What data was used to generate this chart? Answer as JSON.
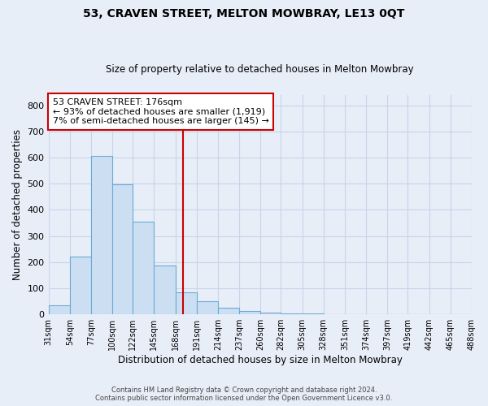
{
  "title": "53, CRAVEN STREET, MELTON MOWBRAY, LE13 0QT",
  "subtitle": "Size of property relative to detached houses in Melton Mowbray",
  "xlabel": "Distribution of detached houses by size in Melton Mowbray",
  "ylabel": "Number of detached properties",
  "bar_values": [
    35,
    220,
    605,
    498,
    355,
    188,
    85,
    50,
    25,
    13,
    8,
    5,
    3,
    0,
    0,
    0,
    0,
    0,
    0,
    0
  ],
  "bin_edges": [
    31,
    54,
    77,
    100,
    122,
    145,
    168,
    191,
    214,
    237,
    260,
    282,
    305,
    328,
    351,
    374,
    397,
    419,
    442,
    465,
    488
  ],
  "tick_labels": [
    "31sqm",
    "54sqm",
    "77sqm",
    "100sqm",
    "122sqm",
    "145sqm",
    "168sqm",
    "191sqm",
    "214sqm",
    "237sqm",
    "260sqm",
    "282sqm",
    "305sqm",
    "328sqm",
    "351sqm",
    "374sqm",
    "397sqm",
    "419sqm",
    "442sqm",
    "465sqm",
    "488sqm"
  ],
  "bar_color": "#ccdff2",
  "bar_edge_color": "#6aaad4",
  "vline_x": 176,
  "vline_color": "#cc0000",
  "ylim": [
    0,
    840
  ],
  "yticks": [
    0,
    100,
    200,
    300,
    400,
    500,
    600,
    700,
    800
  ],
  "annotation_title": "53 CRAVEN STREET: 176sqm",
  "annotation_line1": "← 93% of detached houses are smaller (1,919)",
  "annotation_line2": "7% of semi-detached houses are larger (145) →",
  "annotation_box_color": "#ffffff",
  "annotation_box_edge": "#cc0000",
  "footer1": "Contains HM Land Registry data © Crown copyright and database right 2024.",
  "footer2": "Contains public sector information licensed under the Open Government Licence v3.0.",
  "bg_color": "#e8eef8",
  "grid_color": "#c8d4e8",
  "plot_bg_color": "#e8eef8"
}
